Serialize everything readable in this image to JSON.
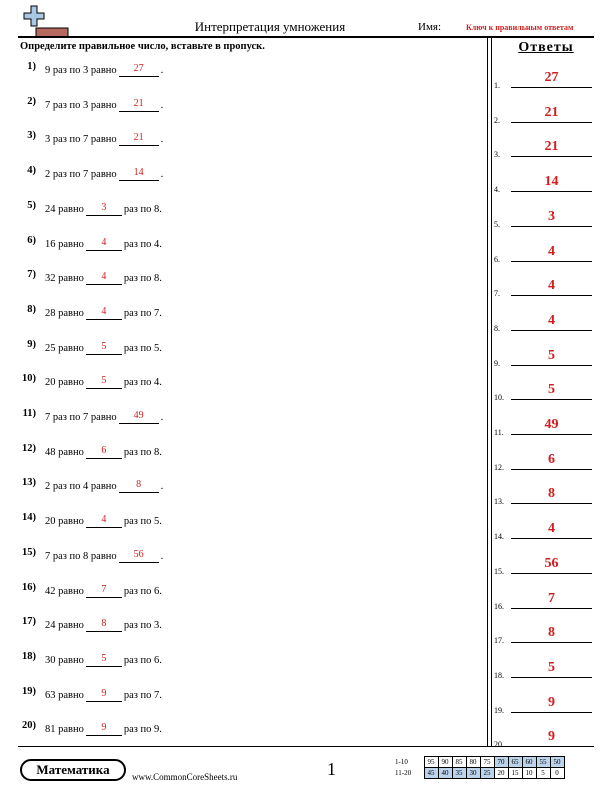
{
  "header": {
    "title": "Интерпретация умножения",
    "name_label": "Имя:",
    "name_value": "Ключ к правильным ответам"
  },
  "instruction": "Определите правильное число, вставьте в пропуск.",
  "answers_title": "Ответы",
  "problems": [
    {
      "num": "1)",
      "before": "9 раз по 3 равно",
      "answer": "27",
      "after": "."
    },
    {
      "num": "2)",
      "before": "7 раз по 3 равно",
      "answer": "21",
      "after": "."
    },
    {
      "num": "3)",
      "before": "3 раз по 7 равно",
      "answer": "21",
      "after": "."
    },
    {
      "num": "4)",
      "before": "2 раз по 7 равно",
      "answer": "14",
      "after": "."
    },
    {
      "num": "5)",
      "before": "24 равно",
      "answer": "3",
      "after": "раз по 8."
    },
    {
      "num": "6)",
      "before": "16 равно",
      "answer": "4",
      "after": "раз по 4."
    },
    {
      "num": "7)",
      "before": "32 равно",
      "answer": "4",
      "after": "раз по 8."
    },
    {
      "num": "8)",
      "before": "28 равно",
      "answer": "4",
      "after": "раз по 7."
    },
    {
      "num": "9)",
      "before": "25 равно",
      "answer": "5",
      "after": "раз по 5."
    },
    {
      "num": "10)",
      "before": "20 равно",
      "answer": "5",
      "after": "раз по 4."
    },
    {
      "num": "11)",
      "before": "7 раз по 7 равно",
      "answer": "49",
      "after": "."
    },
    {
      "num": "12)",
      "before": "48 равно",
      "answer": "6",
      "after": "раз по 8."
    },
    {
      "num": "13)",
      "before": "2 раз по 4 равно",
      "answer": "8",
      "after": "."
    },
    {
      "num": "14)",
      "before": "20 равно",
      "answer": "4",
      "after": "раз по 5."
    },
    {
      "num": "15)",
      "before": "7 раз по 8 равно",
      "answer": "56",
      "after": "."
    },
    {
      "num": "16)",
      "before": "42 равно",
      "answer": "7",
      "after": "раз по 6."
    },
    {
      "num": "17)",
      "before": "24 равно",
      "answer": "8",
      "after": "раз по 3."
    },
    {
      "num": "18)",
      "before": "30 равно",
      "answer": "5",
      "after": "раз по 6."
    },
    {
      "num": "19)",
      "before": "63 равно",
      "answer": "9",
      "after": "раз по 7."
    },
    {
      "num": "20)",
      "before": "81 равно",
      "answer": "9",
      "after": "раз по 9."
    }
  ],
  "answer_key": [
    {
      "num": "1.",
      "value": "27"
    },
    {
      "num": "2.",
      "value": "21"
    },
    {
      "num": "3.",
      "value": "21"
    },
    {
      "num": "4.",
      "value": "14"
    },
    {
      "num": "5.",
      "value": "3"
    },
    {
      "num": "6.",
      "value": "4"
    },
    {
      "num": "7.",
      "value": "4"
    },
    {
      "num": "8.",
      "value": "4"
    },
    {
      "num": "9.",
      "value": "5"
    },
    {
      "num": "10.",
      "value": "5"
    },
    {
      "num": "11.",
      "value": "49"
    },
    {
      "num": "12.",
      "value": "6"
    },
    {
      "num": "13.",
      "value": "8"
    },
    {
      "num": "14.",
      "value": "4"
    },
    {
      "num": "15.",
      "value": "56"
    },
    {
      "num": "16.",
      "value": "7"
    },
    {
      "num": "17.",
      "value": "8"
    },
    {
      "num": "18.",
      "value": "5"
    },
    {
      "num": "19.",
      "value": "9"
    },
    {
      "num": "20.",
      "value": "9"
    }
  ],
  "footer": {
    "brand": "Математика",
    "site": "www.CommonCoreSheets.ru",
    "page": "1"
  },
  "score_table": {
    "rows": [
      {
        "label": "1-10",
        "values": [
          "95",
          "90",
          "85",
          "80",
          "75",
          "70",
          "65",
          "60",
          "55",
          "50"
        ]
      },
      {
        "label": "11-20",
        "values": [
          "45",
          "40",
          "35",
          "30",
          "25",
          "20",
          "15",
          "10",
          "5",
          "0"
        ]
      }
    ],
    "highlight_color": "#bcd3ec",
    "answer_color": "#d21e1e"
  }
}
